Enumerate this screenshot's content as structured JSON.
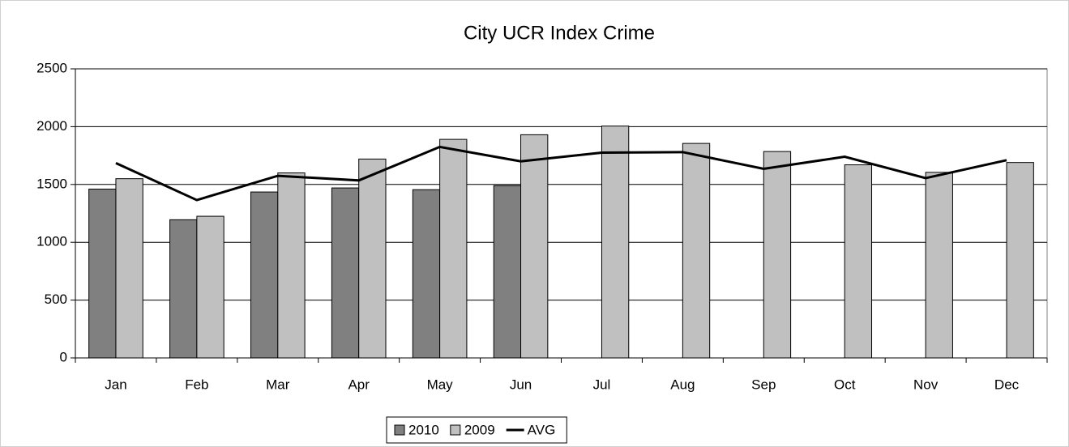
{
  "chart_data": {
    "type": "bar",
    "title": "City UCR Index Crime",
    "categories": [
      "Jan",
      "Feb",
      "Mar",
      "Apr",
      "May",
      "Jun",
      "Jul",
      "Aug",
      "Sep",
      "Oct",
      "Nov",
      "Dec"
    ],
    "series": [
      {
        "name": "2010",
        "color": "#808080",
        "values": [
          1460,
          1195,
          1435,
          1470,
          1455,
          1490,
          null,
          null,
          null,
          null,
          null,
          null
        ]
      },
      {
        "name": "2009",
        "color": "#c0c0c0",
        "values": [
          1550,
          1225,
          1600,
          1720,
          1890,
          1930,
          2005,
          1855,
          1785,
          1670,
          1605,
          1690
        ]
      },
      {
        "name": "AVG",
        "color": "#000000",
        "type": "line",
        "values": [
          1685,
          1365,
          1575,
          1535,
          1825,
          1700,
          1775,
          1780,
          1635,
          1740,
          1555,
          1710
        ]
      }
    ],
    "ylim": [
      0,
      2500
    ],
    "yticks": [
      0,
      500,
      1000,
      1500,
      2000,
      2500
    ],
    "grid": true,
    "legend": "bottom"
  }
}
